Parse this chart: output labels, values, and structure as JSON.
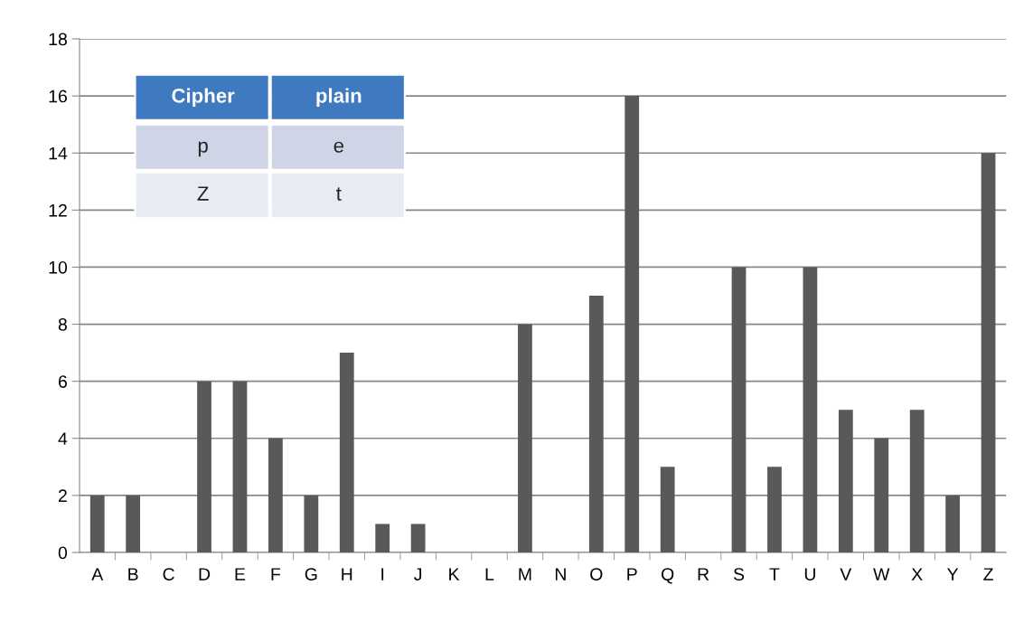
{
  "chart_data": {
    "type": "bar",
    "categories": [
      "A",
      "B",
      "C",
      "D",
      "E",
      "F",
      "G",
      "H",
      "I",
      "J",
      "K",
      "L",
      "M",
      "N",
      "O",
      "P",
      "Q",
      "R",
      "S",
      "T",
      "U",
      "V",
      "W",
      "X",
      "Y",
      "Z"
    ],
    "values": [
      2,
      2,
      0,
      6,
      6,
      4,
      2,
      7,
      1,
      1,
      0,
      0,
      8,
      0,
      9,
      16,
      3,
      0,
      10,
      3,
      10,
      5,
      4,
      5,
      2,
      14
    ],
    "color": "#595959",
    "ylim": [
      0,
      18
    ],
    "yticks": [
      0,
      2,
      4,
      6,
      8,
      10,
      12,
      14,
      16,
      18
    ],
    "grid": "y",
    "annotations": [
      "Cipher",
      "plain",
      "p",
      "e",
      "Z",
      "t"
    ]
  }
}
